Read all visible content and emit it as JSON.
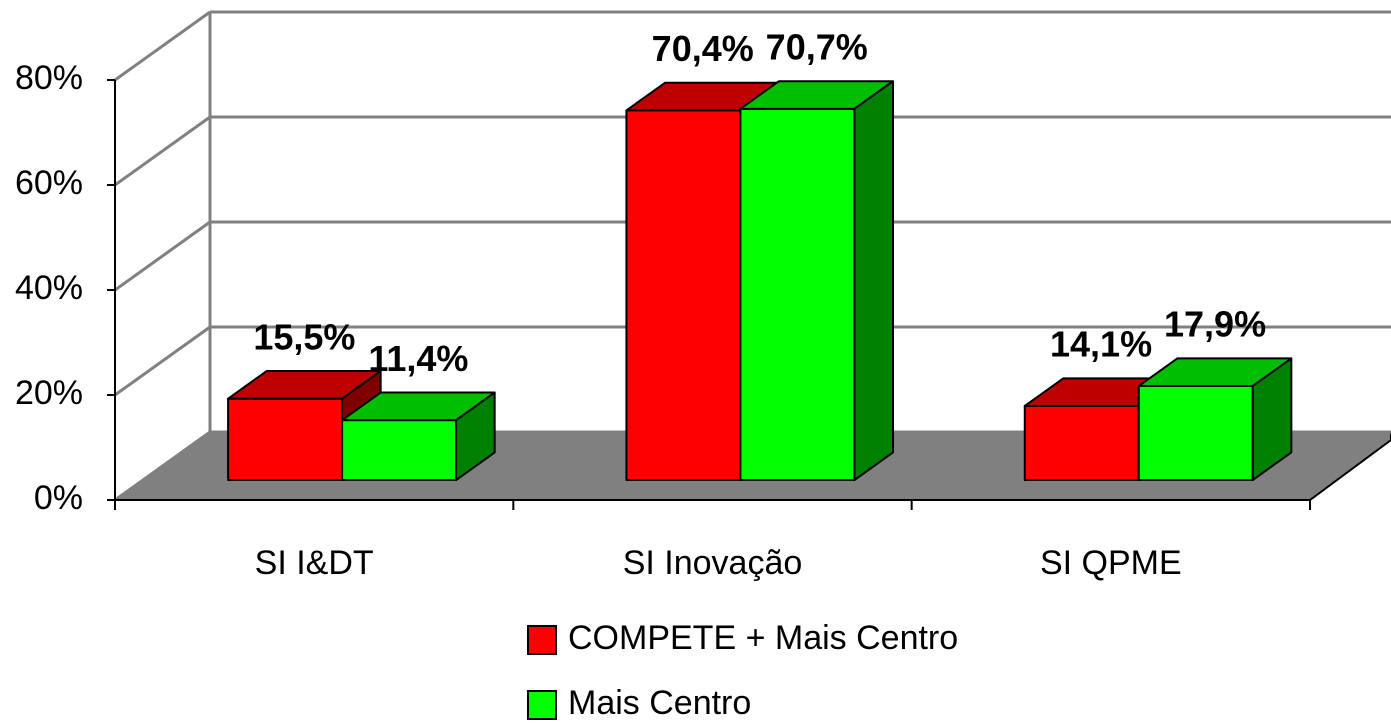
{
  "chart_data": {
    "type": "bar3d",
    "categories": [
      "SI I&DT",
      "SI Inovação",
      "SI QPME"
    ],
    "series": [
      {
        "name": "COMPETE + Mais Centro",
        "color": "#ff0000",
        "values": [
          15.5,
          70.4,
          14.1
        ],
        "value_labels": [
          "15,5%",
          "70,4%",
          "14,1%"
        ]
      },
      {
        "name": "Mais Centro",
        "color": "#00ff00",
        "values": [
          11.4,
          70.7,
          17.9
        ],
        "value_labels": [
          "11,4%",
          "70,7%",
          "17,9%"
        ]
      }
    ],
    "ylim": [
      0,
      80
    ],
    "yticks": [
      {
        "value": 0,
        "label": "0%"
      },
      {
        "value": 20,
        "label": "20%"
      },
      {
        "value": 40,
        "label": "40%"
      },
      {
        "value": 60,
        "label": "60%"
      },
      {
        "value": 80,
        "label": "80%"
      }
    ],
    "grid": true,
    "legend": "bottom"
  }
}
